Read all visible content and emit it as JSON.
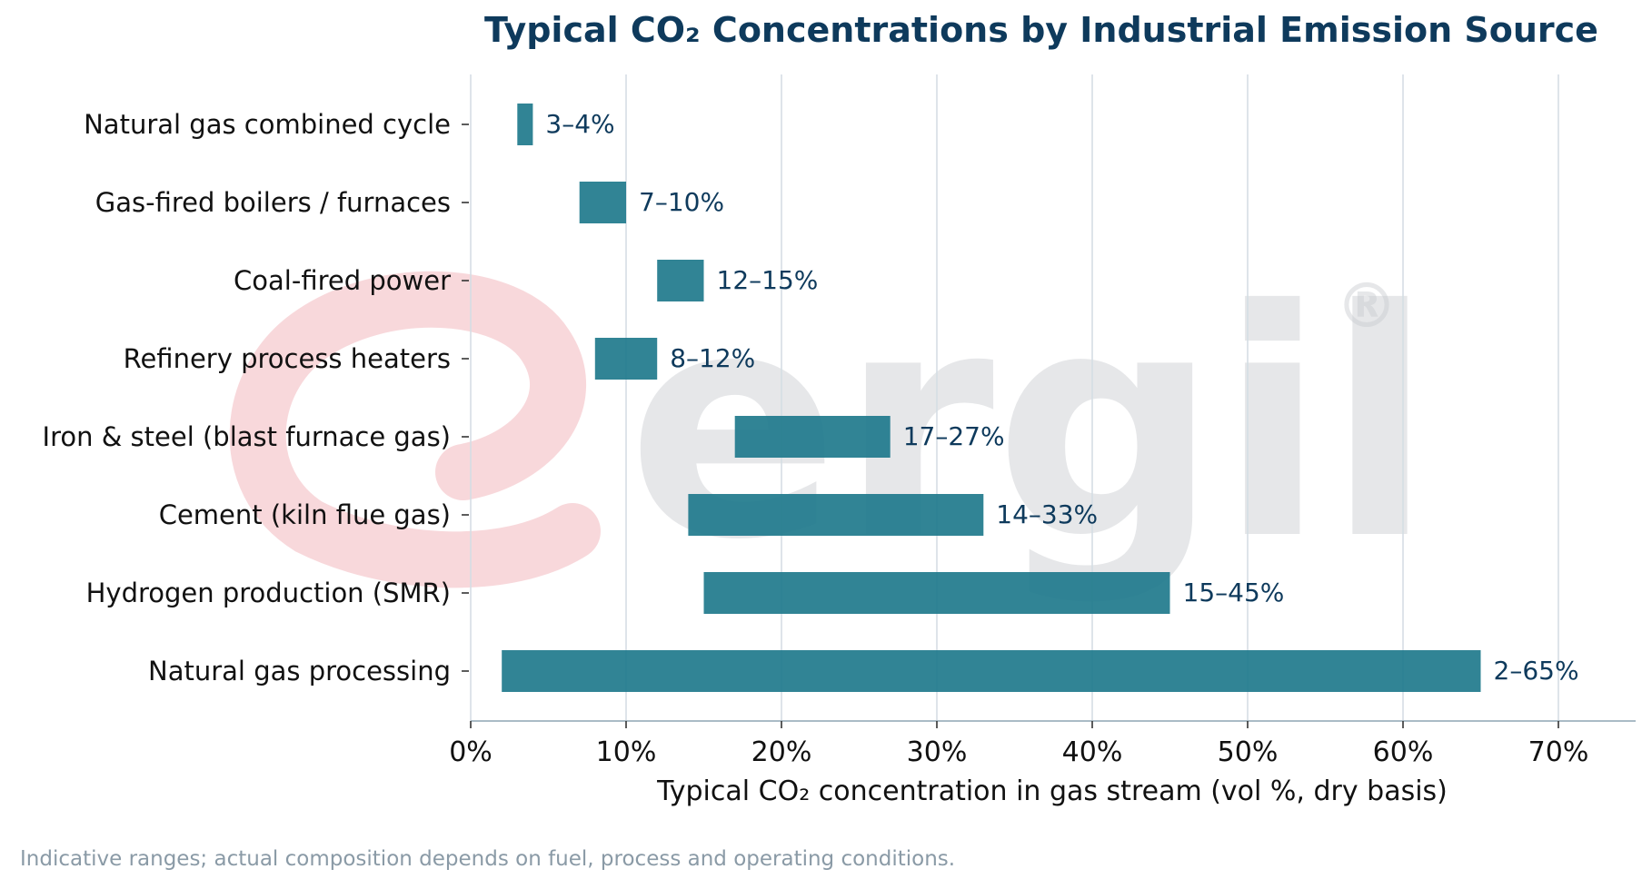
{
  "colors": {
    "bar": "#1f7a8c",
    "title": "#0e3a5c",
    "data_label": "#0e3a5c",
    "grid": "#d5dee4",
    "axis": "#aabbc6",
    "footnote": "#8a9aa6",
    "watermark_logo": "#f2b8bd",
    "watermark_text": "#c9ccd0"
  },
  "watermark": {
    "text": "ergil",
    "mark": "®"
  },
  "chart_data": {
    "type": "bar",
    "orientation": "horizontal-range",
    "title": "Typical CO₂ Concentrations by Industrial Emission Source",
    "xlabel": "Typical CO₂ concentration in gas stream (vol %, dry basis)",
    "ylabel": "",
    "xlim": [
      0,
      75
    ],
    "x_ticks": [
      0,
      10,
      20,
      30,
      40,
      50,
      60,
      70
    ],
    "x_tick_labels": [
      "0%",
      "10%",
      "20%",
      "30%",
      "40%",
      "50%",
      "60%",
      "70%"
    ],
    "grid": "vertical",
    "categories": [
      "Natural gas combined cycle",
      "Gas-fired boilers / furnaces",
      "Coal-fired power",
      "Refinery process heaters",
      "Iron & steel (blast furnace gas)",
      "Cement (kiln flue gas)",
      "Hydrogen production (SMR)",
      "Natural gas processing"
    ],
    "ranges": [
      [
        3,
        4
      ],
      [
        7,
        10
      ],
      [
        12,
        15
      ],
      [
        8,
        12
      ],
      [
        17,
        27
      ],
      [
        14,
        33
      ],
      [
        15,
        45
      ],
      [
        2,
        65
      ]
    ],
    "data_labels": [
      "3–4%",
      "7–10%",
      "12–15%",
      "8–12%",
      "17–27%",
      "14–33%",
      "15–45%",
      "2–65%"
    ],
    "footnote": "Indicative ranges; actual composition depends on fuel, process and operating conditions."
  }
}
